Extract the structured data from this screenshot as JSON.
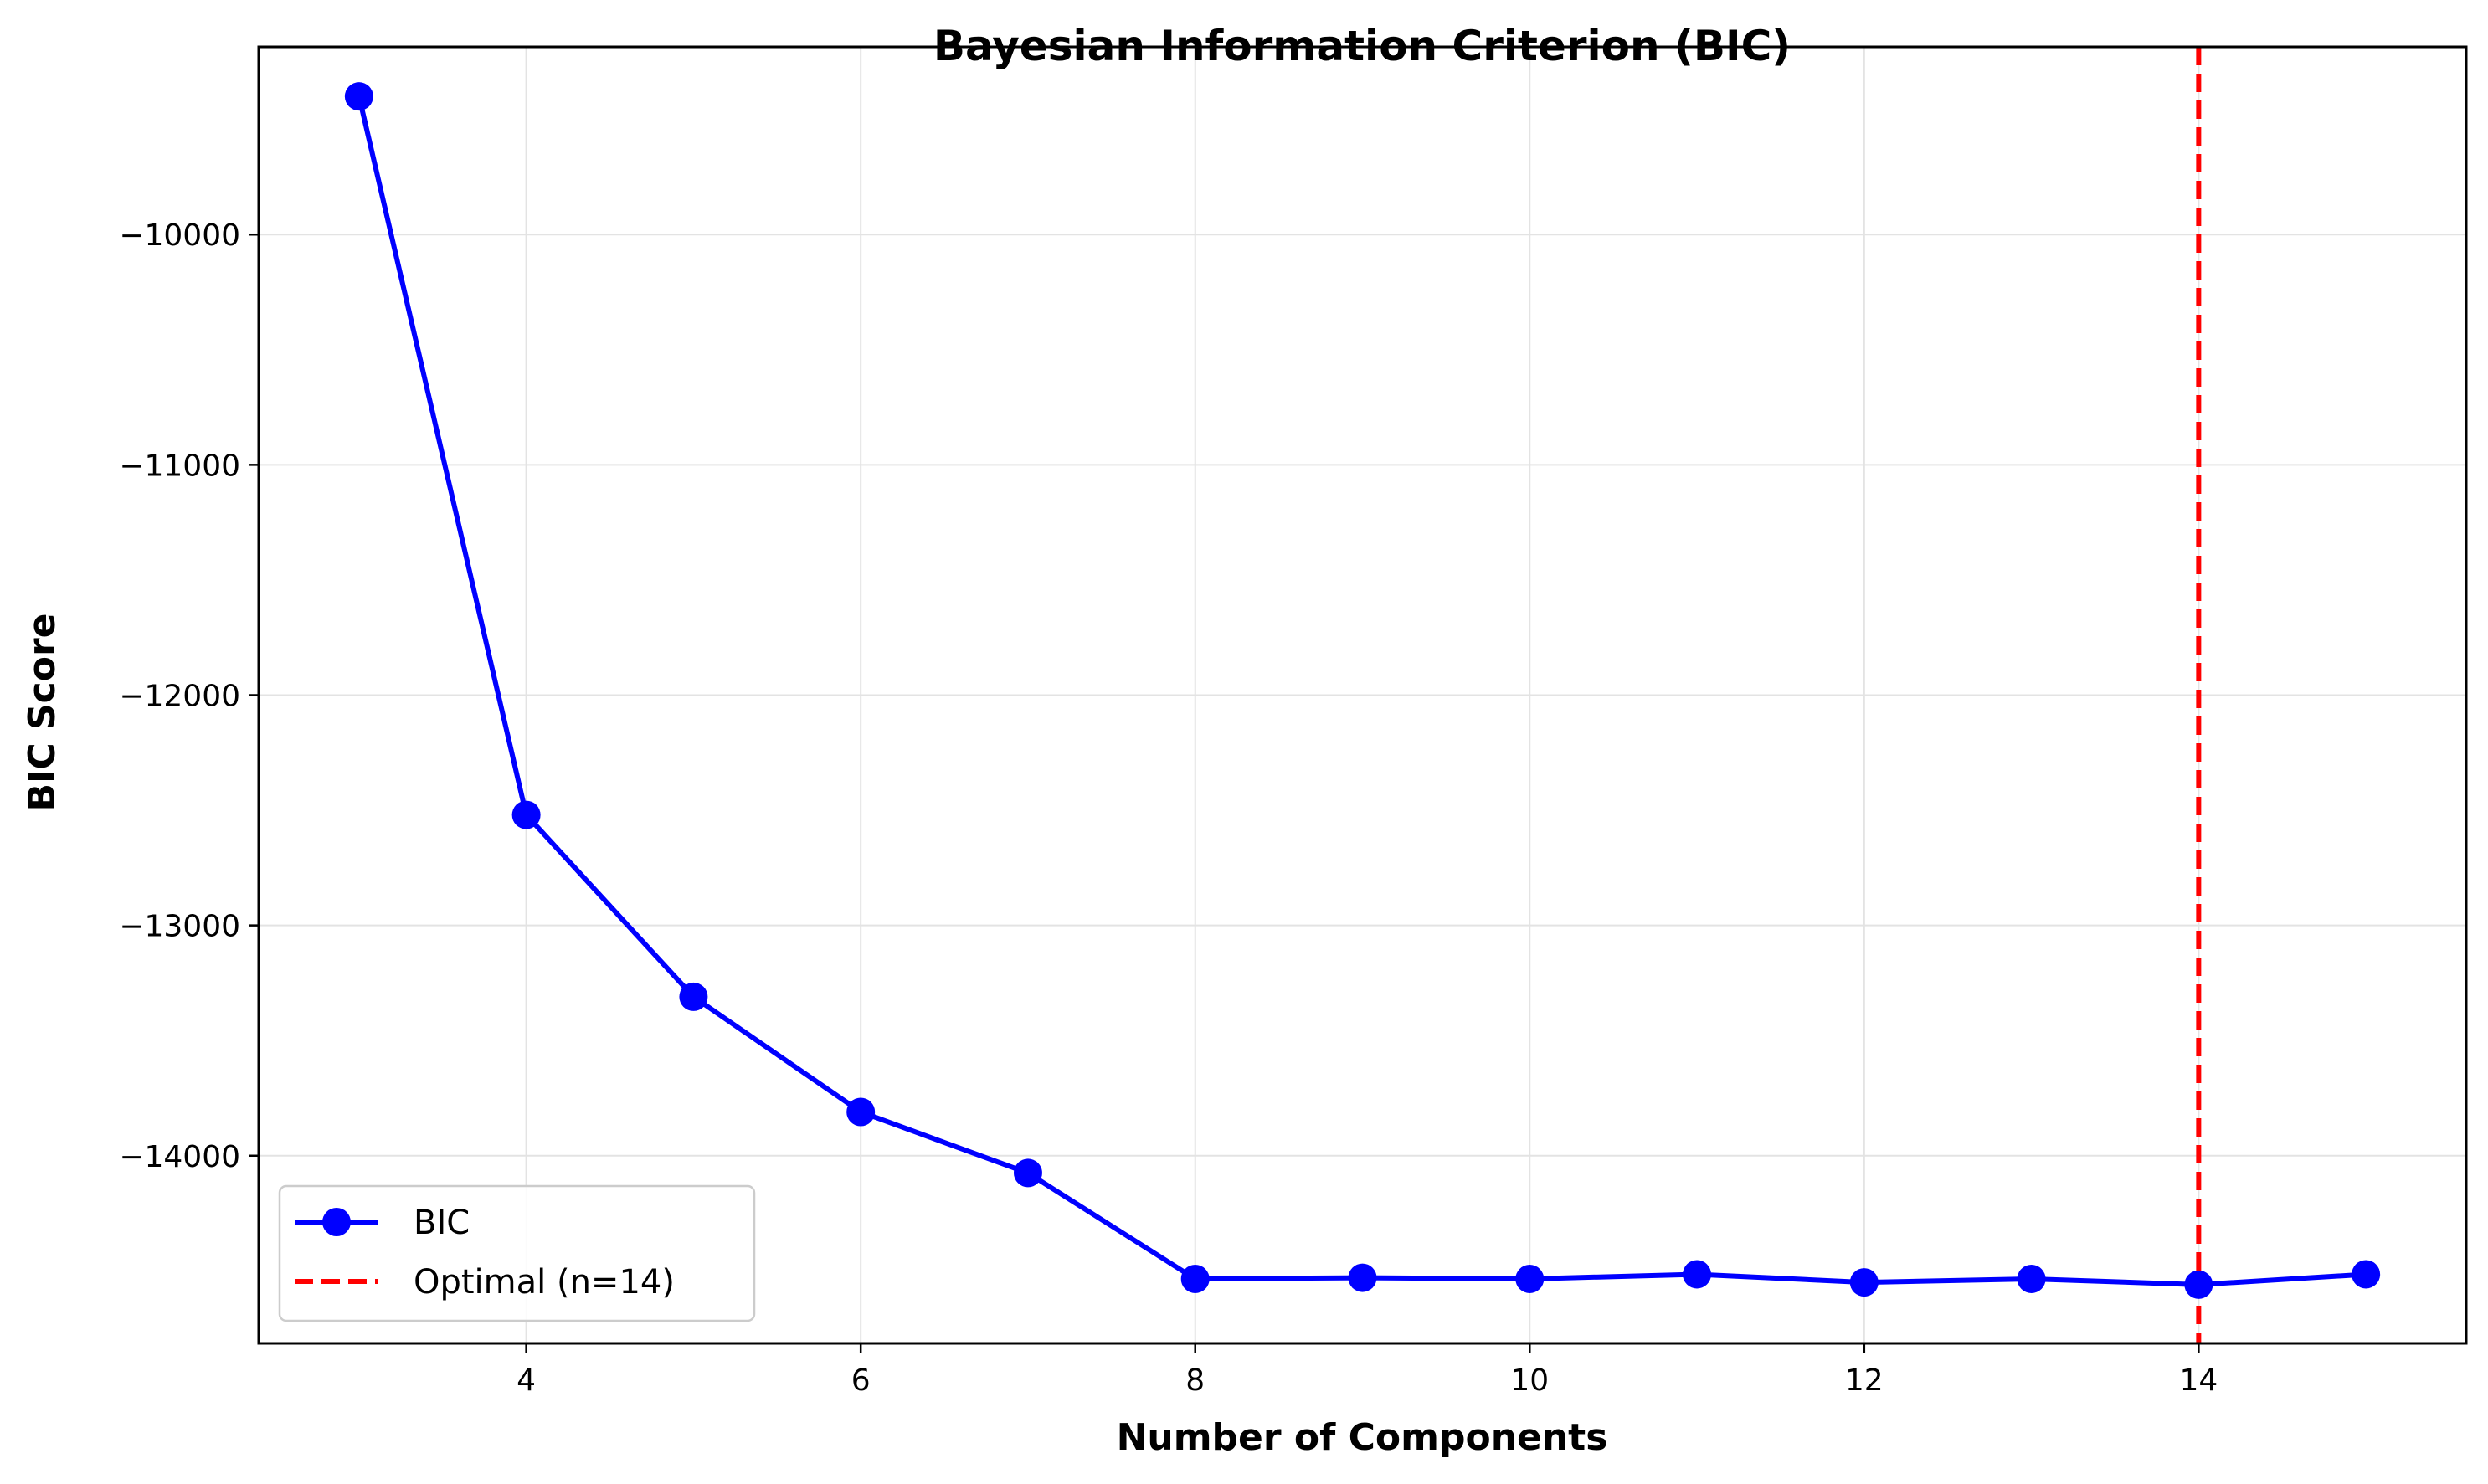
{
  "chart_data": {
    "type": "line",
    "title": "Bayesian Information Criterion (BIC)",
    "xlabel": "Number of Components",
    "ylabel": "BIC Score",
    "xlim": [
      2.4,
      15.6
    ],
    "ylim": [
      -14815,
      -9185
    ],
    "x_ticks": [
      4,
      6,
      8,
      10,
      12,
      14
    ],
    "x_tick_labels": [
      "4",
      "6",
      "8",
      "10",
      "12",
      "14"
    ],
    "y_ticks": [
      -10000,
      -11000,
      -12000,
      -13000,
      -14000
    ],
    "y_tick_labels": [
      "−10000",
      "−11000",
      "−12000",
      "−13000",
      "−14000"
    ],
    "grid": true,
    "legend_position": "lower-left",
    "series": [
      {
        "name": "BIC",
        "color": "#0000ff",
        "marker": "circle",
        "x": [
          3,
          4,
          5,
          6,
          7,
          8,
          9,
          10,
          11,
          12,
          13,
          14,
          15
        ],
        "y": [
          -9400,
          -12520,
          -13310,
          -13810,
          -14075,
          -14535,
          -14530,
          -14535,
          -14515,
          -14550,
          -14535,
          -14560,
          -14515
        ]
      }
    ],
    "reference_lines": [
      {
        "name": "Optimal (n=14)",
        "orientation": "vertical",
        "x": 14,
        "color": "#ff0000",
        "style": "dashed"
      }
    ]
  }
}
